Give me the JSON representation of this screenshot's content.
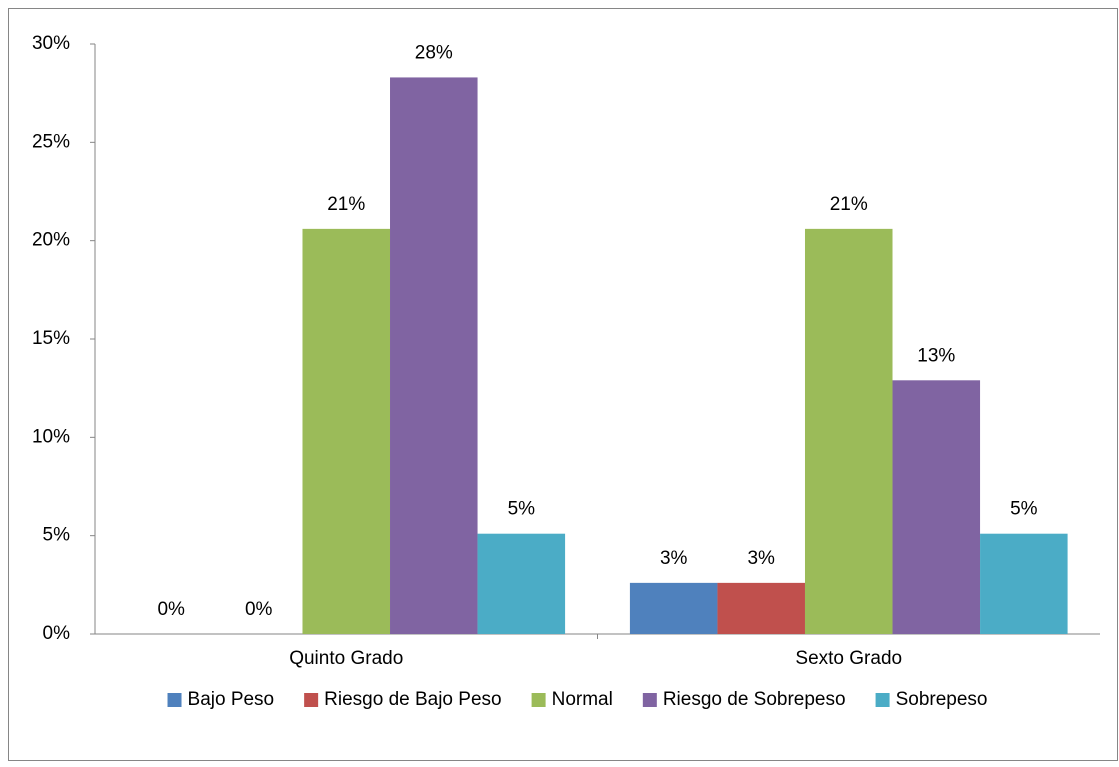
{
  "chart_data": {
    "type": "bar",
    "categories": [
      "Quinto Grado",
      "Sexto Grado"
    ],
    "series": [
      {
        "name": "Bajo Peso",
        "color": "#4f81bd",
        "values": [
          0,
          2.6
        ],
        "value_labels": [
          "0%",
          "3%"
        ]
      },
      {
        "name": "Riesgo de Bajo Peso",
        "color": "#c0504d",
        "values": [
          0,
          2.6
        ],
        "value_labels": [
          "0%",
          "3%"
        ]
      },
      {
        "name": "Normal",
        "color": "#9bbb59",
        "values": [
          20.6,
          20.6
        ],
        "value_labels": [
          "21%",
          "21%"
        ]
      },
      {
        "name": "Riesgo de Sobrepeso",
        "color": "#8064a2",
        "values": [
          28.3,
          12.9
        ],
        "value_labels": [
          "28%",
          "13%"
        ]
      },
      {
        "name": "Sobrepeso",
        "color": "#4bacc6",
        "values": [
          5.1,
          5.1
        ],
        "value_labels": [
          "5%",
          "5%"
        ]
      }
    ],
    "ylim": [
      0,
      30
    ],
    "yticks": [
      {
        "value": 0,
        "label": "0%"
      },
      {
        "value": 5,
        "label": "5%"
      },
      {
        "value": 10,
        "label": "10%"
      },
      {
        "value": 15,
        "label": "15%"
      },
      {
        "value": 20,
        "label": "20%"
      },
      {
        "value": 25,
        "label": "25%"
      },
      {
        "value": 30,
        "label": "30%"
      }
    ],
    "legend": "bottom"
  }
}
